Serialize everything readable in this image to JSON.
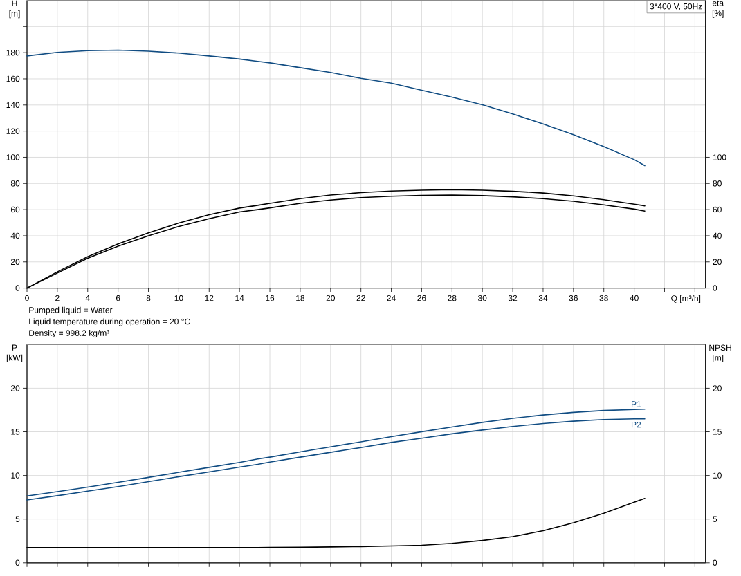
{
  "chart_data": [
    {
      "type": "line",
      "title": "3*400 V, 50Hz",
      "xlabel": "Q [m³/h]",
      "ylabel": "H [m]",
      "y2label": "eta [%]",
      "annotations": [
        "Pumped liquid = Water",
        "Liquid temperature during operation = 20 °C",
        "Density = 998.2 kg/m³"
      ],
      "x": [
        0,
        2,
        4,
        6,
        8,
        10,
        12,
        14,
        15.2,
        16,
        18,
        20,
        22,
        24,
        26,
        28,
        30,
        32,
        34,
        36,
        38,
        40,
        40.7
      ],
      "series": [
        {
          "color": "#104c82",
          "values": [
            177.5,
            180.2,
            181.5,
            181.9,
            181.1,
            179.7,
            177.5,
            175.1,
            173.3,
            172.2,
            168.5,
            164.9,
            160.4,
            156.7,
            151.3,
            146.0,
            140.2,
            133.1,
            125.5,
            117.3,
            108.2,
            98.2,
            93.6
          ]
        },
        {
          "color": "#000000",
          "axis": "y2",
          "values": [
            0,
            12.4,
            24.0,
            33.7,
            42.2,
            49.7,
            56.1,
            61.2,
            63.3,
            64.8,
            68.4,
            71.2,
            73.0,
            74.2,
            74.9,
            75.3,
            74.9,
            74.0,
            72.7,
            70.5,
            67.6,
            64.2,
            62.9
          ]
        },
        {
          "color": "#000000",
          "axis": "y2",
          "values": [
            0,
            11.5,
            22.8,
            32.0,
            40.0,
            47.1,
            53.1,
            58.2,
            60.0,
            61.3,
            64.8,
            67.3,
            69.2,
            70.2,
            70.9,
            71.1,
            70.7,
            69.8,
            68.4,
            66.4,
            63.6,
            60.4,
            58.9
          ]
        }
      ],
      "xlim": [
        0,
        44.7
      ],
      "xticks": [
        0,
        2,
        4,
        6,
        8,
        10,
        12,
        14,
        16,
        18,
        20,
        22,
        24,
        26,
        28,
        30,
        32,
        34,
        36,
        38,
        40,
        {
          "value": 42,
          "label": null
        },
        {
          "value": 44,
          "label": null
        }
      ],
      "ylim": [
        0,
        220
      ],
      "yticks": [
        0,
        20,
        40,
        60,
        80,
        100,
        120,
        140,
        160,
        180,
        {
          "value": 200,
          "label": null
        }
      ],
      "y2lim": [
        0,
        220
      ],
      "y2ticks": [
        0,
        20,
        40,
        60,
        80,
        100
      ],
      "grid": true
    },
    {
      "type": "line",
      "ylabel": "P [kW]",
      "y2label": "NPSH [m]",
      "x": [
        0,
        2,
        4,
        6,
        8,
        10,
        12,
        14,
        15.2,
        16,
        18,
        20,
        22,
        24,
        26,
        28,
        30,
        32,
        34,
        36,
        38,
        40,
        40.7
      ],
      "series": [
        {
          "name": "P1",
          "color": "#104c82",
          "values": [
            7.65,
            8.14,
            8.66,
            9.21,
            9.78,
            10.36,
            10.93,
            11.5,
            11.89,
            12.1,
            12.7,
            13.28,
            13.85,
            14.44,
            15.01,
            15.56,
            16.08,
            16.55,
            16.93,
            17.23,
            17.45,
            17.56,
            17.59
          ]
        },
        {
          "name": "P2",
          "color": "#104c82",
          "values": [
            7.19,
            7.68,
            8.2,
            8.72,
            9.29,
            9.86,
            10.41,
            10.96,
            11.28,
            11.53,
            12.1,
            12.65,
            13.2,
            13.78,
            14.27,
            14.77,
            15.21,
            15.62,
            15.95,
            16.22,
            16.41,
            16.49,
            16.49
          ]
        },
        {
          "color": "#000000",
          "axis": "y2",
          "values": [
            1.75,
            1.75,
            1.75,
            1.75,
            1.75,
            1.75,
            1.75,
            1.75,
            1.75,
            1.76,
            1.78,
            1.82,
            1.86,
            1.92,
            2.0,
            2.22,
            2.55,
            2.99,
            3.67,
            4.58,
            5.67,
            6.93,
            7.37
          ]
        }
      ],
      "xlim": [
        0,
        44.7
      ],
      "xticks": [
        0,
        2,
        4,
        6,
        8,
        10,
        12,
        14,
        16,
        18,
        20,
        22,
        24,
        26,
        28,
        30,
        32,
        34,
        36,
        38,
        40,
        42,
        44
      ],
      "ylim": [
        0,
        25
      ],
      "yticks": [
        0,
        5,
        10,
        15,
        20
      ],
      "y2lim": [
        0,
        25
      ],
      "y2ticks": [
        0,
        5,
        10,
        15,
        20
      ],
      "grid": true,
      "tick_labels": "y"
    }
  ]
}
